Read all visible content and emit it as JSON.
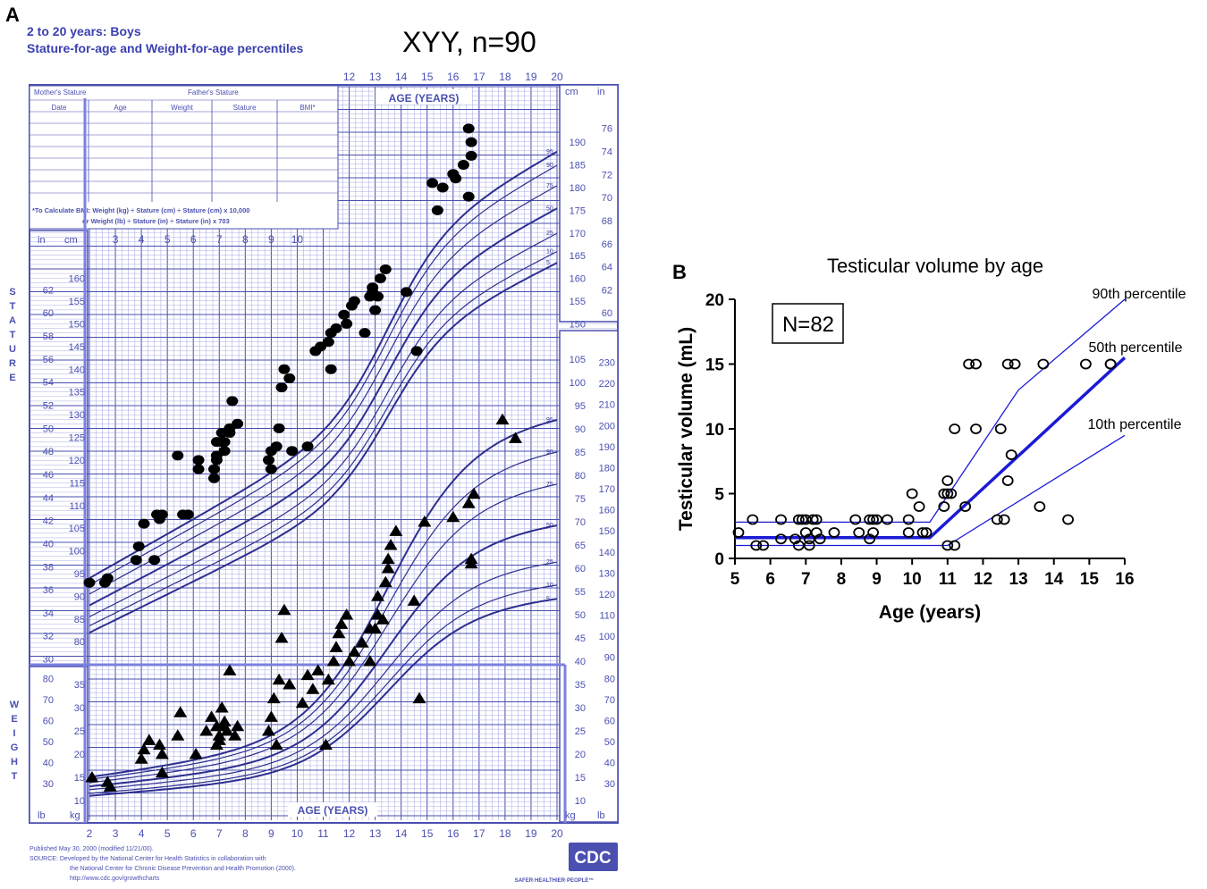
{
  "figure": {
    "panel_a_letter": "A",
    "panel_b_letter": "B"
  },
  "panelA": {
    "header_line1": "2 to 20 years: Boys",
    "header_line2": "Stature-for-age and Weight-for-age percentiles",
    "cohort_label": "XYY, n=90",
    "age_years_top": "AGE (YEARS)",
    "age_years_bottom": "AGE (YEARS)",
    "stature_vertical": "STATURE",
    "weight_vertical": "WEIGHT",
    "table_headers": [
      "Date",
      "Age",
      "Weight",
      "Stature",
      "BMI*"
    ],
    "mothers_stature": "Mother's Stature",
    "fathers_stature": "Father's Stature",
    "bmi_note_line1": "*To Calculate BMI: Weight (kg) ÷ Stature (cm) ÷ Stature (cm) x 10,000",
    "bmi_note_line2": "or Weight (lb) ÷ Stature (in) ÷ Stature (in) x 703",
    "unit_in": "in",
    "unit_cm": "cm",
    "unit_lb": "lb",
    "unit_kg": "kg",
    "footer_line1": "Published May 30, 2000 (modified 11/21/00).",
    "footer_line2": "SOURCE: Developed by the National Center for Health Statistics in collaboration with",
    "footer_line3": "the National Center for Chronic Disease Prevention and Health Promotion (2000).",
    "footer_line4": "http://www.cdc.gov/growthcharts",
    "logo_text": "CDC",
    "logo_tagline": "SAFER·HEALTHIER·PEOPLE™",
    "colors": {
      "grid": "#4a4fb0",
      "grid_light": "#9fa3e0",
      "curve": "#2d2f8f",
      "marker": "#000000"
    }
  },
  "chart_data": [
    {
      "type": "scatter",
      "title": "XYY, n=90",
      "subtitle": "2 to 20 years: Boys Stature-for-age and Weight-for-age percentiles",
      "xlabel": "AGE (YEARS)",
      "xlim": [
        2,
        20
      ],
      "x_ticks": [
        2,
        3,
        4,
        5,
        6,
        7,
        8,
        9,
        10,
        11,
        12,
        13,
        14,
        15,
        16,
        17,
        18,
        19,
        20
      ],
      "stature_cm_ticks": [
        80,
        85,
        90,
        95,
        100,
        105,
        110,
        115,
        120,
        125,
        130,
        135,
        140,
        145,
        150,
        155,
        160,
        165,
        170,
        175,
        180,
        185,
        190
      ],
      "stature_in_ticks": [
        30,
        32,
        34,
        36,
        38,
        40,
        42,
        44,
        46,
        48,
        50,
        52,
        54,
        56,
        58,
        60,
        62,
        64,
        66,
        68,
        70,
        72,
        74,
        76
      ],
      "weight_kg_ticks": [
        10,
        15,
        20,
        25,
        30,
        35,
        40,
        45,
        50,
        55,
        60,
        65,
        70,
        75,
        80,
        85,
        90,
        95,
        100,
        105
      ],
      "weight_lb_ticks": [
        30,
        40,
        50,
        60,
        70,
        80,
        90,
        100,
        110,
        120,
        130,
        140,
        150,
        160,
        170,
        180,
        190,
        200,
        210,
        220,
        230
      ],
      "percentile_labels": [
        "5",
        "10",
        "25",
        "50",
        "75",
        "90",
        "95"
      ],
      "series": [
        {
          "name": "Stature",
          "marker": "circle",
          "points": [
            [
              2.0,
              93
            ],
            [
              2.6,
              93
            ],
            [
              2.7,
              94
            ],
            [
              3.8,
              98
            ],
            [
              3.9,
              101
            ],
            [
              4.1,
              106
            ],
            [
              4.5,
              98
            ],
            [
              4.6,
              108
            ],
            [
              4.8,
              108
            ],
            [
              4.7,
              107
            ],
            [
              5.4,
              121
            ],
            [
              5.6,
              108
            ],
            [
              5.8,
              108
            ],
            [
              6.2,
              118
            ],
            [
              6.2,
              120
            ],
            [
              6.8,
              118
            ],
            [
              6.8,
              116
            ],
            [
              6.9,
              120
            ],
            [
              6.9,
              121
            ],
            [
              6.9,
              124
            ],
            [
              7.1,
              124
            ],
            [
              7.2,
              122
            ],
            [
              7.2,
              124
            ],
            [
              7.1,
              126
            ],
            [
              7.4,
              126
            ],
            [
              7.4,
              127
            ],
            [
              7.5,
              133
            ],
            [
              7.7,
              128
            ],
            [
              8.9,
              120
            ],
            [
              9.0,
              118
            ],
            [
              9.0,
              122
            ],
            [
              9.2,
              123
            ],
            [
              9.3,
              127
            ],
            [
              9.4,
              136
            ],
            [
              9.5,
              140
            ],
            [
              9.7,
              138
            ],
            [
              9.8,
              122
            ],
            [
              10.4,
              123
            ],
            [
              10.7,
              144
            ],
            [
              10.9,
              145
            ],
            [
              11.2,
              146
            ],
            [
              11.3,
              140
            ],
            [
              11.3,
              148
            ],
            [
              11.5,
              149
            ],
            [
              11.8,
              152
            ],
            [
              11.9,
              150
            ],
            [
              12.1,
              154
            ],
            [
              12.2,
              155
            ],
            [
              12.6,
              148
            ],
            [
              12.8,
              156
            ],
            [
              12.9,
              157
            ],
            [
              12.9,
              158
            ],
            [
              13.0,
              153
            ],
            [
              13.1,
              156
            ],
            [
              13.2,
              160
            ],
            [
              13.4,
              162
            ],
            [
              14.2,
              157
            ],
            [
              14.6,
              144
            ],
            [
              15.2,
              181
            ],
            [
              15.4,
              175
            ],
            [
              15.6,
              180
            ],
            [
              16.0,
              183
            ],
            [
              16.1,
              182
            ],
            [
              16.4,
              185
            ],
            [
              16.6,
              193
            ],
            [
              16.6,
              178
            ],
            [
              16.7,
              187
            ],
            [
              16.7,
              190
            ]
          ]
        },
        {
          "name": "Weight",
          "marker": "triangle",
          "points": [
            [
              2.1,
              15
            ],
            [
              2.7,
              14
            ],
            [
              2.8,
              13
            ],
            [
              4.0,
              19
            ],
            [
              4.1,
              21
            ],
            [
              4.3,
              23
            ],
            [
              4.7,
              22
            ],
            [
              4.8,
              20
            ],
            [
              4.8,
              16
            ],
            [
              5.4,
              24
            ],
            [
              5.5,
              29
            ],
            [
              6.1,
              20
            ],
            [
              6.5,
              25
            ],
            [
              6.7,
              28
            ],
            [
              6.9,
              22
            ],
            [
              6.9,
              26
            ],
            [
              7.0,
              23
            ],
            [
              7.0,
              24
            ],
            [
              7.1,
              26
            ],
            [
              7.1,
              30
            ],
            [
              7.2,
              27
            ],
            [
              7.3,
              25
            ],
            [
              7.4,
              38
            ],
            [
              7.6,
              24
            ],
            [
              7.7,
              26
            ],
            [
              8.9,
              25
            ],
            [
              9.0,
              28
            ],
            [
              9.1,
              32
            ],
            [
              9.2,
              22
            ],
            [
              9.3,
              36
            ],
            [
              9.4,
              45
            ],
            [
              9.5,
              51
            ],
            [
              9.7,
              35
            ],
            [
              10.2,
              31
            ],
            [
              10.4,
              37
            ],
            [
              10.6,
              34
            ],
            [
              10.8,
              38
            ],
            [
              11.1,
              22
            ],
            [
              11.2,
              36
            ],
            [
              11.4,
              40
            ],
            [
              11.5,
              43
            ],
            [
              11.6,
              46
            ],
            [
              11.7,
              48
            ],
            [
              11.9,
              50
            ],
            [
              12.0,
              40
            ],
            [
              12.2,
              42
            ],
            [
              12.5,
              44
            ],
            [
              12.8,
              47
            ],
            [
              12.8,
              40
            ],
            [
              13.0,
              47
            ],
            [
              13.1,
              50
            ],
            [
              13.1,
              54
            ],
            [
              13.3,
              49
            ],
            [
              13.4,
              57
            ],
            [
              13.5,
              60
            ],
            [
              13.5,
              62
            ],
            [
              13.6,
              65
            ],
            [
              13.8,
              68
            ],
            [
              14.5,
              53
            ],
            [
              14.7,
              32
            ],
            [
              14.9,
              70
            ],
            [
              16.0,
              71
            ],
            [
              16.6,
              74
            ],
            [
              16.7,
              61
            ],
            [
              16.7,
              62
            ],
            [
              16.8,
              76
            ],
            [
              17.9,
              92
            ],
            [
              18.4,
              88
            ]
          ]
        }
      ]
    },
    {
      "type": "scatter",
      "title": "Testicular volume by age",
      "xlabel": "Age (years)",
      "ylabel": "Testicular volume (mL)",
      "xlim": [
        5,
        16
      ],
      "ylim": [
        0,
        20
      ],
      "x_ticks": [
        5,
        6,
        7,
        8,
        9,
        10,
        11,
        12,
        13,
        14,
        15,
        16
      ],
      "y_ticks": [
        0,
        5,
        10,
        15,
        20
      ],
      "annotation_box": "N=82",
      "series": [
        {
          "name": "Testicular volume",
          "marker": "open-circle",
          "points": [
            [
              5.1,
              2
            ],
            [
              5.5,
              3
            ],
            [
              5.6,
              1
            ],
            [
              5.8,
              1
            ],
            [
              6.3,
              1.5
            ],
            [
              6.3,
              3
            ],
            [
              6.7,
              1.5
            ],
            [
              6.8,
              3
            ],
            [
              6.9,
              3
            ],
            [
              6.8,
              1
            ],
            [
              7.0,
              3
            ],
            [
              7.0,
              2
            ],
            [
              7.1,
              1.5
            ],
            [
              7.1,
              1
            ],
            [
              7.2,
              3
            ],
            [
              7.3,
              2
            ],
            [
              7.3,
              3
            ],
            [
              7.4,
              1.5
            ],
            [
              7.8,
              2
            ],
            [
              8.4,
              3
            ],
            [
              8.5,
              2
            ],
            [
              8.8,
              3
            ],
            [
              8.8,
              1.5
            ],
            [
              8.9,
              2
            ],
            [
              8.9,
              3
            ],
            [
              9.0,
              3
            ],
            [
              9.3,
              3
            ],
            [
              9.9,
              3
            ],
            [
              9.9,
              2
            ],
            [
              10.0,
              5
            ],
            [
              10.2,
              4
            ],
            [
              10.3,
              2
            ],
            [
              10.4,
              2
            ],
            [
              10.9,
              4
            ],
            [
              10.9,
              5
            ],
            [
              11.0,
              6
            ],
            [
              11.0,
              5
            ],
            [
              11.1,
              5
            ],
            [
              11.0,
              1
            ],
            [
              11.2,
              1
            ],
            [
              11.2,
              10
            ],
            [
              11.5,
              4
            ],
            [
              11.6,
              15
            ],
            [
              11.8,
              15
            ],
            [
              11.8,
              10
            ],
            [
              12.4,
              3
            ],
            [
              12.5,
              10
            ],
            [
              12.6,
              3
            ],
            [
              12.7,
              6
            ],
            [
              12.7,
              15
            ],
            [
              12.8,
              8
            ],
            [
              12.9,
              15
            ],
            [
              13.6,
              4
            ],
            [
              13.7,
              15
            ],
            [
              14.4,
              3
            ],
            [
              14.9,
              15
            ],
            [
              15.6,
              15
            ],
            [
              15.6,
              15
            ]
          ]
        }
      ],
      "reference_lines": [
        {
          "name": "90th percentile",
          "points": [
            [
              5,
              2.8
            ],
            [
              10.5,
              2.8
            ],
            [
              13,
              13
            ],
            [
              16,
              20
            ]
          ]
        },
        {
          "name": "50th percentile",
          "points": [
            [
              5,
              1.6
            ],
            [
              10.5,
              1.6
            ],
            [
              16,
              15.5
            ]
          ]
        },
        {
          "name": "10th percentile",
          "points": [
            [
              5,
              1
            ],
            [
              11,
              1
            ],
            [
              16,
              9.5
            ]
          ]
        }
      ]
    }
  ]
}
